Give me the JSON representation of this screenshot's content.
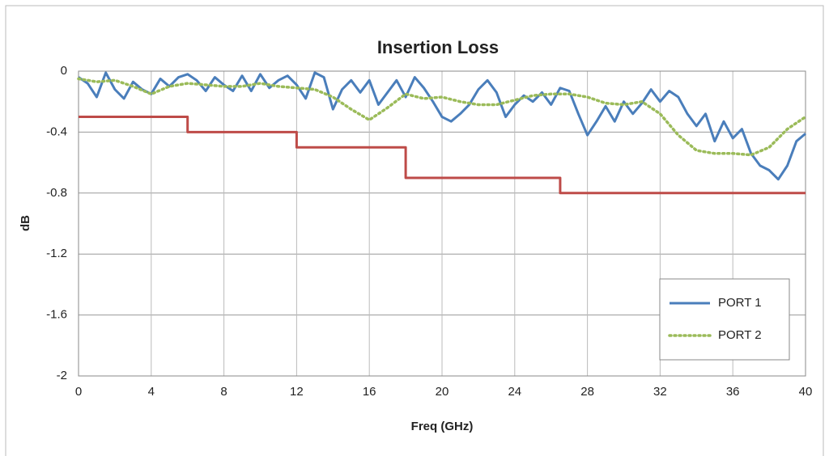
{
  "chart_data": {
    "type": "line",
    "title": "Insertion Loss",
    "xlabel": "Freq (GHz)",
    "ylabel": "dB",
    "xlim": [
      0,
      40
    ],
    "xticks": [
      0,
      4,
      8,
      12,
      16,
      20,
      24,
      28,
      32,
      36,
      40
    ],
    "ylim": [
      -2,
      0
    ],
    "yticks": [
      0,
      -0.4,
      -0.8,
      -1.2,
      -1.6,
      -2
    ],
    "grid": true,
    "legend": "bottom-right",
    "series": [
      {
        "name": "PORT 1",
        "color": "#4a7ebb",
        "style": "solid",
        "x": [
          0,
          0.5,
          1,
          1.5,
          2,
          2.5,
          3,
          3.5,
          4,
          4.5,
          5,
          5.5,
          6,
          6.5,
          7,
          7.5,
          8,
          8.5,
          9,
          9.5,
          10,
          10.5,
          11,
          11.5,
          12,
          12.5,
          13,
          13.5,
          14,
          14.5,
          15,
          15.5,
          16,
          16.5,
          17,
          17.5,
          18,
          18.5,
          19,
          19.5,
          20,
          20.5,
          21,
          21.5,
          22,
          22.5,
          23,
          23.5,
          24,
          24.5,
          25,
          25.5,
          26,
          26.5,
          27,
          27.5,
          28,
          28.5,
          29,
          29.5,
          30,
          30.5,
          31,
          31.5,
          32,
          32.5,
          33,
          33.5,
          34,
          34.5,
          35,
          35.5,
          36,
          36.5,
          37,
          37.5,
          38,
          38.5,
          39,
          39.5,
          40
        ],
        "values": [
          -0.04,
          -0.08,
          -0.17,
          -0.01,
          -0.12,
          -0.18,
          -0.07,
          -0.12,
          -0.15,
          -0.05,
          -0.1,
          -0.04,
          -0.02,
          -0.06,
          -0.13,
          -0.04,
          -0.09,
          -0.13,
          -0.03,
          -0.13,
          -0.02,
          -0.11,
          -0.06,
          -0.03,
          -0.09,
          -0.18,
          -0.01,
          -0.04,
          -0.25,
          -0.12,
          -0.06,
          -0.14,
          -0.06,
          -0.22,
          -0.14,
          -0.06,
          -0.17,
          -0.04,
          -0.11,
          -0.2,
          -0.3,
          -0.33,
          -0.28,
          -0.22,
          -0.12,
          -0.06,
          -0.14,
          -0.3,
          -0.22,
          -0.16,
          -0.2,
          -0.14,
          -0.22,
          -0.11,
          -0.13,
          -0.28,
          -0.42,
          -0.33,
          -0.23,
          -0.33,
          -0.2,
          -0.28,
          -0.21,
          -0.12,
          -0.2,
          -0.13,
          -0.17,
          -0.28,
          -0.36,
          -0.28,
          -0.46,
          -0.33,
          -0.44,
          -0.38,
          -0.54,
          -0.62,
          -0.65,
          -0.71,
          -0.62,
          -0.46,
          -0.41
        ]
      },
      {
        "name": "PORT 2",
        "color": "#9bbb59",
        "style": "dotted",
        "x": [
          0,
          1,
          2,
          3,
          4,
          5,
          6,
          7,
          8,
          9,
          10,
          11,
          12,
          13,
          14,
          15,
          16,
          17,
          18,
          19,
          20,
          21,
          22,
          23,
          24,
          25,
          26,
          27,
          28,
          29,
          30,
          31,
          32,
          33,
          34,
          35,
          36,
          37,
          38,
          39,
          40
        ],
        "values": [
          -0.05,
          -0.07,
          -0.06,
          -0.1,
          -0.15,
          -0.1,
          -0.08,
          -0.09,
          -0.1,
          -0.1,
          -0.08,
          -0.1,
          -0.11,
          -0.12,
          -0.17,
          -0.25,
          -0.32,
          -0.24,
          -0.15,
          -0.18,
          -0.17,
          -0.2,
          -0.22,
          -0.22,
          -0.19,
          -0.16,
          -0.15,
          -0.15,
          -0.17,
          -0.21,
          -0.22,
          -0.2,
          -0.28,
          -0.42,
          -0.52,
          -0.54,
          -0.54,
          -0.55,
          -0.5,
          -0.38,
          -0.3
        ]
      },
      {
        "color": "#be4b48",
        "style": "solid",
        "x": [
          0,
          6,
          6,
          12,
          12,
          18,
          18,
          26.5,
          26.5,
          40
        ],
        "values": [
          -0.3,
          -0.3,
          -0.4,
          -0.4,
          -0.5,
          -0.5,
          -0.7,
          -0.7,
          -0.8,
          -0.8
        ]
      }
    ]
  }
}
